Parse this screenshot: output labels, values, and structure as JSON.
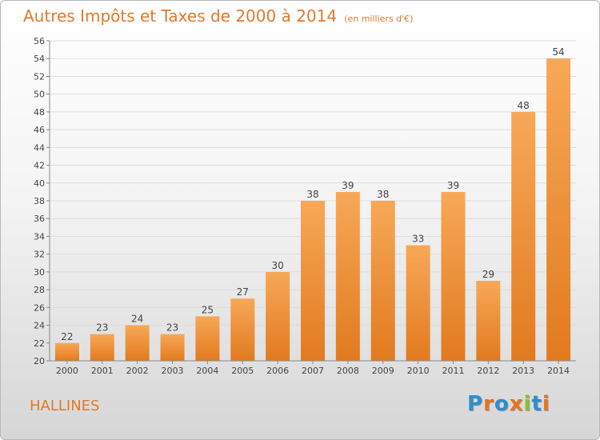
{
  "title": "Autres Impôts et Taxes de 2000 à 2014",
  "unit_note": "(en milliers d'€)",
  "commune": "HALLINES",
  "logo": {
    "text": "Proxiti",
    "letters": [
      {
        "ch": "P",
        "color": "#2d8fd0"
      },
      {
        "ch": "r",
        "color": "#e8731c"
      },
      {
        "ch": "o",
        "color": "#2d8fd0"
      },
      {
        "ch": "x",
        "color": "#e8731c"
      },
      {
        "ch": "i",
        "color": "#8bbf2a"
      },
      {
        "ch": "t",
        "color": "#2d8fd0"
      },
      {
        "ch": "i",
        "color": "#e8731c"
      }
    ]
  },
  "colors": {
    "bar_light": "#f7a857",
    "bar_dark": "#e27a1e",
    "title": "#e07a2a",
    "grid": "#dddddd"
  },
  "chart_data": {
    "type": "bar",
    "categories": [
      "2000",
      "2001",
      "2002",
      "2003",
      "2004",
      "2005",
      "2006",
      "2007",
      "2008",
      "2009",
      "2010",
      "2011",
      "2012",
      "2013",
      "2014"
    ],
    "values": [
      22,
      23,
      24,
      23,
      25,
      27,
      30,
      38,
      39,
      38,
      33,
      39,
      29,
      48,
      54
    ],
    "ylim": [
      20,
      56
    ],
    "yticks": [
      20,
      22,
      24,
      26,
      28,
      30,
      32,
      34,
      36,
      38,
      40,
      42,
      44,
      46,
      48,
      50,
      52,
      54,
      56
    ],
    "grid": true,
    "data_labels": true
  }
}
